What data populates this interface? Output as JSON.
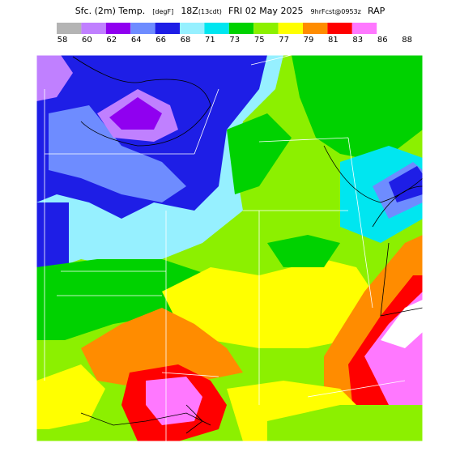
{
  "title_parts": [
    "Sfc. (2m) Temp.",
    "[degF]",
    "18Z",
    "(13cdt)",
    "FRI 02 May 2025",
    "9hrFcst@0953z",
    "RAP"
  ],
  "colorbar": {
    "colors": [
      "#b4b4b4",
      "#c080ff",
      "#9000f0",
      "#6e8cff",
      "#1e1ee6",
      "#96f0ff",
      "#00e6f0",
      "#00d200",
      "#8cf000",
      "#ffff00",
      "#ff8c00",
      "#ff0000",
      "#ff78ff"
    ],
    "labels": [
      58,
      60,
      62,
      64,
      66,
      68,
      71,
      73,
      75,
      77,
      79,
      81,
      83,
      86,
      88
    ]
  }
}
